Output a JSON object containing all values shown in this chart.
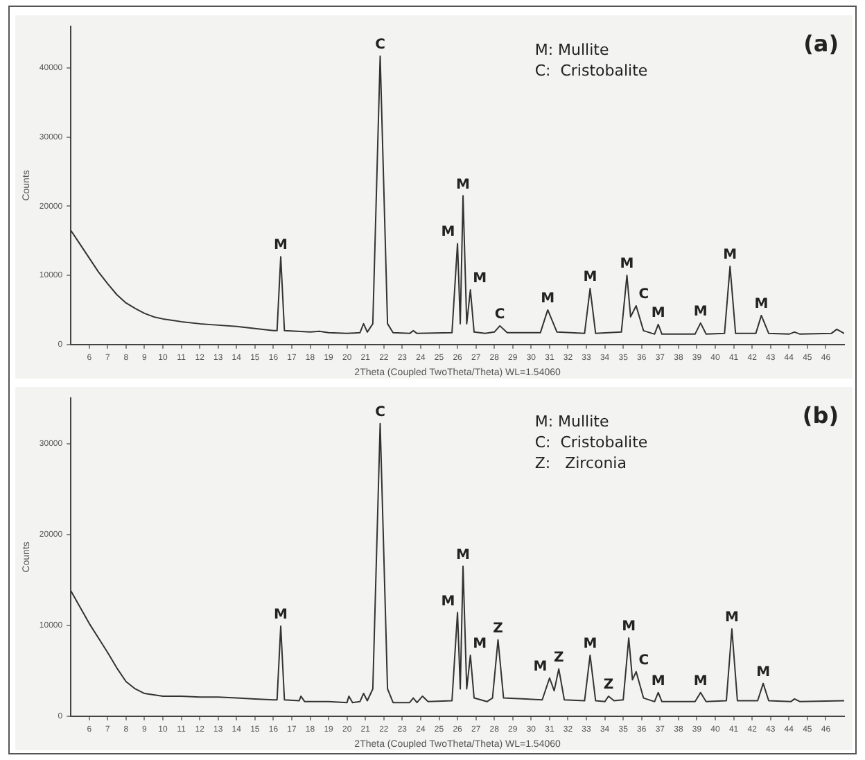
{
  "chart_data": [
    {
      "type": "line",
      "title": "(a)",
      "xlabel": "2Theta (Coupled TwoTheta/Theta) WL=1.54060",
      "ylabel": "Counts",
      "xlim": [
        5,
        47
      ],
      "xticks": [
        6,
        7,
        8,
        9,
        10,
        11,
        12,
        13,
        14,
        15,
        16,
        17,
        18,
        19,
        20,
        21,
        22,
        23,
        24,
        25,
        26,
        27,
        28,
        29,
        30,
        31,
        32,
        33,
        34,
        35,
        36,
        37,
        38,
        39,
        40,
        41,
        42,
        43,
        44,
        45,
        46
      ],
      "ylim": [
        0,
        46000
      ],
      "yticks": [
        0,
        10000,
        20000,
        30000,
        40000
      ],
      "grid": false,
      "legend": false,
      "marker": "none",
      "line_style": "solid",
      "series": [
        {
          "color": "#333333",
          "x": [
            5,
            5.5,
            6,
            6.5,
            7,
            7.5,
            8,
            8.5,
            9,
            9.5,
            10,
            11,
            12,
            13,
            14,
            15,
            16,
            16.2,
            16.4,
            16.6,
            18,
            18.5,
            19,
            20,
            20.7,
            20.9,
            21.1,
            21.4,
            21.8,
            22.2,
            22.5,
            23.4,
            23.6,
            23.8,
            25.7,
            26,
            26.15,
            26.3,
            26.5,
            26.7,
            26.9,
            27.5,
            28,
            28.3,
            28.7,
            30.5,
            30.9,
            31.4,
            32.9,
            33.2,
            33.5,
            34.9,
            35.2,
            35.4,
            35.7,
            36.1,
            36.7,
            36.9,
            37.1,
            38.9,
            39.2,
            39.5,
            40.5,
            40.8,
            41.1,
            42.2,
            42.5,
            42.9,
            44,
            44.3,
            44.6,
            46.3,
            46.6,
            47
          ],
          "values": [
            16500,
            14500,
            12500,
            10500,
            8800,
            7200,
            6000,
            5200,
            4500,
            4000,
            3700,
            3300,
            3000,
            2800,
            2600,
            2300,
            2000,
            2000,
            12700,
            2000,
            1800,
            1900,
            1700,
            1600,
            1700,
            3000,
            1800,
            3000,
            41700,
            3000,
            1700,
            1600,
            2000,
            1600,
            1700,
            14600,
            3000,
            21500,
            3000,
            7900,
            1800,
            1600,
            1800,
            2700,
            1700,
            1700,
            5000,
            1800,
            1600,
            8100,
            1600,
            1800,
            10000,
            4000,
            5600,
            2000,
            1500,
            2900,
            1500,
            1500,
            3100,
            1500,
            1600,
            11300,
            1600,
            1600,
            4200,
            1600,
            1500,
            1800,
            1500,
            1600,
            2200,
            1600
          ]
        }
      ],
      "annotations": [
        "M: Mullite",
        "C:  Cristobalite",
        {
          "text": "M",
          "x": 16.4,
          "y": 12700
        },
        {
          "text": "C",
          "x": 21.8,
          "y": 41700
        },
        {
          "text": "M",
          "x": 26,
          "y": 14600
        },
        {
          "text": "M",
          "x": 26.3,
          "y": 21500
        },
        {
          "text": "M",
          "x": 26.7,
          "y": 7900
        },
        {
          "text": "C",
          "x": 28.3,
          "y": 2700
        },
        {
          "text": "M",
          "x": 30.9,
          "y": 5000
        },
        {
          "text": "M",
          "x": 33.2,
          "y": 8100
        },
        {
          "text": "M",
          "x": 35.2,
          "y": 10000
        },
        {
          "text": "C",
          "x": 35.7,
          "y": 5600
        },
        {
          "text": "M",
          "x": 36.9,
          "y": 2900
        },
        {
          "text": "M",
          "x": 39.2,
          "y": 3100
        },
        {
          "text": "M",
          "x": 40.8,
          "y": 11300
        },
        {
          "text": "M",
          "x": 42.5,
          "y": 4200
        }
      ]
    },
    {
      "type": "line",
      "title": "(b)",
      "xlabel": "2Theta (Coupled TwoTheta/Theta) WL=1.54060",
      "ylabel": "Counts",
      "xlim": [
        5,
        47
      ],
      "xticks": [
        6,
        7,
        8,
        9,
        10,
        11,
        12,
        13,
        14,
        15,
        16,
        17,
        18,
        19,
        20,
        21,
        22,
        23,
        24,
        25,
        26,
        27,
        28,
        29,
        30,
        31,
        32,
        33,
        34,
        35,
        36,
        37,
        38,
        39,
        40,
        41,
        42,
        43,
        44,
        45,
        46
      ],
      "ylim": [
        0,
        35000
      ],
      "yticks": [
        0,
        10000,
        20000,
        30000
      ],
      "grid": false,
      "legend": false,
      "marker": "none",
      "line_style": "solid",
      "series": [
        {
          "color": "#333333",
          "x": [
            5,
            5.5,
            6,
            6.5,
            7,
            7.5,
            8,
            8.5,
            9,
            10,
            11,
            12,
            13,
            14,
            15,
            16,
            16.2,
            16.4,
            16.6,
            17.4,
            17.5,
            17.7,
            19,
            20,
            20.1,
            20.3,
            20.7,
            20.9,
            21.1,
            21.4,
            21.8,
            22.2,
            22.5,
            23.4,
            23.6,
            23.8,
            24.1,
            24.4,
            25.7,
            26,
            26.15,
            26.3,
            26.5,
            26.7,
            26.9,
            27.6,
            27.9,
            28.2,
            28.5,
            30.6,
            31,
            31.25,
            31.5,
            31.8,
            32.9,
            33.2,
            33.5,
            34,
            34.2,
            34.5,
            35,
            35.3,
            35.5,
            35.7,
            36.1,
            36.7,
            36.9,
            37.1,
            38.9,
            39.2,
            39.5,
            40.6,
            40.9,
            41.2,
            42.3,
            42.6,
            42.9,
            44.1,
            44.3,
            44.6,
            47
          ],
          "values": [
            13800,
            12000,
            10200,
            8600,
            7000,
            5300,
            3800,
            3000,
            2500,
            2200,
            2200,
            2100,
            2100,
            2000,
            1900,
            1800,
            1800,
            9900,
            1800,
            1700,
            2200,
            1600,
            1600,
            1500,
            2200,
            1500,
            1600,
            2500,
            1700,
            3000,
            32200,
            3000,
            1500,
            1500,
            2000,
            1500,
            2200,
            1600,
            1700,
            11400,
            3000,
            16500,
            3000,
            6700,
            2000,
            1600,
            2000,
            8400,
            2000,
            1800,
            4200,
            2800,
            5200,
            1800,
            1700,
            6700,
            1700,
            1600,
            2200,
            1700,
            1800,
            8600,
            4000,
            4900,
            2000,
            1600,
            2600,
            1600,
            1600,
            2600,
            1600,
            1700,
            9600,
            1700,
            1700,
            3600,
            1700,
            1600,
            1900,
            1600,
            1700
          ]
        }
      ],
      "annotations": [
        "M: Mullite",
        "C:  Cristobalite",
        "Z:   Zirconia",
        {
          "text": "M",
          "x": 16.4,
          "y": 9900
        },
        {
          "text": "C",
          "x": 21.8,
          "y": 32200
        },
        {
          "text": "M",
          "x": 26,
          "y": 11400
        },
        {
          "text": "M",
          "x": 26.3,
          "y": 16500
        },
        {
          "text": "M",
          "x": 26.7,
          "y": 6700
        },
        {
          "text": "Z",
          "x": 28.2,
          "y": 8400
        },
        {
          "text": "M",
          "x": 31,
          "y": 4200
        },
        {
          "text": "Z",
          "x": 31.5,
          "y": 5200
        },
        {
          "text": "M",
          "x": 33.2,
          "y": 6700
        },
        {
          "text": "Z",
          "x": 34.2,
          "y": 2200
        },
        {
          "text": "M",
          "x": 35.3,
          "y": 8600
        },
        {
          "text": "C",
          "x": 35.7,
          "y": 4900
        },
        {
          "text": "M",
          "x": 36.9,
          "y": 2600
        },
        {
          "text": "M",
          "x": 39.2,
          "y": 2600
        },
        {
          "text": "M",
          "x": 40.9,
          "y": 9600
        },
        {
          "text": "M",
          "x": 42.6,
          "y": 3600
        }
      ]
    }
  ]
}
